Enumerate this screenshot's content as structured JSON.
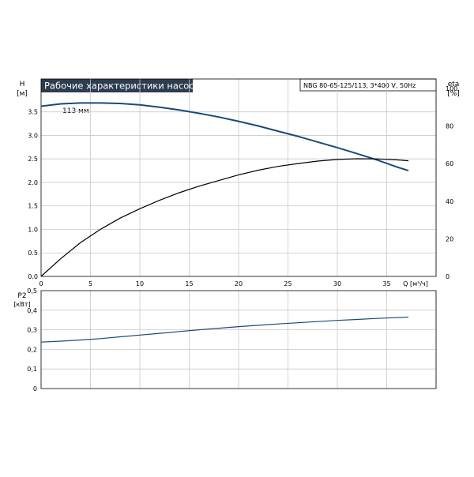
{
  "chart_data": [
    {
      "type": "line",
      "title": "Рабочие характеристики насоса",
      "model_label": "NBG 80-65-125/113, 3*400 V, 50Hz",
      "y_label": "H",
      "y_unit": "[м]",
      "y2_label": "eta",
      "y2_unit": "[%]",
      "x_label": "Q [м³/ч]",
      "xlim": [
        0,
        40
      ],
      "ylim": [
        0,
        4.2
      ],
      "y2lim": [
        0,
        105
      ],
      "x_ticks": [
        "0",
        "5",
        "10",
        "15",
        "20",
        "25",
        "30",
        "35"
      ],
      "y_ticks": [
        "0.0",
        "0.5",
        "1.0",
        "1.5",
        "2.0",
        "2.5",
        "3.0",
        "3.5"
      ],
      "y2_ticks": [
        "0",
        "20",
        "40",
        "60",
        "80",
        "100"
      ],
      "grid": true,
      "annotations": [
        {
          "text": "113 мм"
        }
      ],
      "series": [
        {
          "axis": "y",
          "color": "#1a4a7a",
          "x": [
            0,
            2,
            4,
            6,
            8,
            10,
            12,
            14,
            16,
            18,
            20,
            22,
            24,
            26,
            28,
            30,
            32,
            34,
            36,
            37.2
          ],
          "y": [
            3.62,
            3.67,
            3.69,
            3.69,
            3.68,
            3.65,
            3.6,
            3.54,
            3.47,
            3.39,
            3.3,
            3.2,
            3.09,
            2.98,
            2.86,
            2.74,
            2.61,
            2.48,
            2.33,
            2.25
          ]
        },
        {
          "axis": "y2",
          "color": "#000000",
          "x": [
            0,
            2,
            4,
            6,
            8,
            10,
            12,
            14,
            16,
            18,
            20,
            22,
            24,
            26,
            28,
            30,
            32,
            34,
            36,
            37.2
          ],
          "y": [
            0,
            9.5,
            18,
            25,
            31,
            36,
            40.5,
            44.5,
            48,
            51,
            54,
            56.5,
            58.5,
            60,
            61.3,
            62.2,
            62.6,
            62.5,
            62,
            61.5
          ]
        }
      ]
    },
    {
      "type": "line",
      "y_label": "P2",
      "y_unit": "[кВт]",
      "xlim": [
        0,
        40
      ],
      "ylim": [
        0,
        0.5
      ],
      "y_ticks": [
        "0",
        "0,1",
        "0,2",
        "0,3",
        "0,4",
        "0,5"
      ],
      "grid": true,
      "series": [
        {
          "color": "#1a4a7a",
          "x": [
            0,
            2,
            4,
            6,
            8,
            10,
            12,
            14,
            16,
            18,
            20,
            22,
            24,
            26,
            28,
            30,
            32,
            34,
            36,
            37.2
          ],
          "y": [
            0.237,
            0.242,
            0.248,
            0.255,
            0.264,
            0.273,
            0.282,
            0.291,
            0.3,
            0.308,
            0.316,
            0.323,
            0.33,
            0.336,
            0.342,
            0.348,
            0.353,
            0.358,
            0.362,
            0.365
          ]
        }
      ]
    }
  ]
}
